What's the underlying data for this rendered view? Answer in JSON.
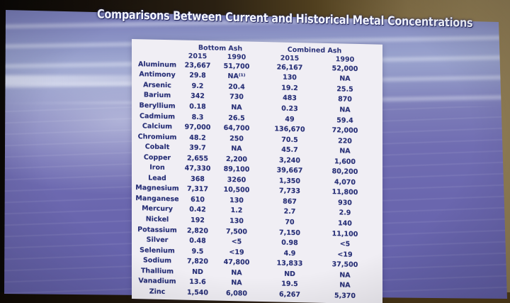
{
  "slide": {
    "title": "Comparisons Between Current and Historical Metal Concentrations",
    "table": {
      "group_headers": [
        "Bottom Ash",
        "Combined Ash"
      ],
      "year_headers": [
        "2015",
        "1990",
        "2015",
        "1990"
      ],
      "rows": [
        {
          "metal": "Aluminum",
          "values": [
            "23,667",
            "51,700",
            "26,167",
            "52,000"
          ]
        },
        {
          "metal": "Antimony",
          "values": [
            "29.8",
            "NA⁽¹⁾",
            "130",
            "NA"
          ]
        },
        {
          "metal": "Arsenic",
          "values": [
            "9.2",
            "20.4",
            "19.2",
            "25.5"
          ]
        },
        {
          "metal": "Barium",
          "values": [
            "342",
            "730",
            "483",
            "870"
          ]
        },
        {
          "metal": "Beryllium",
          "values": [
            "0.18",
            "NA",
            "0.23",
            "NA"
          ]
        },
        {
          "metal": "Cadmium",
          "values": [
            "8.3",
            "26.5",
            "49",
            "59.4"
          ]
        },
        {
          "metal": "Calcium",
          "values": [
            "97,000",
            "64,700",
            "136,670",
            "72,000"
          ]
        },
        {
          "metal": "Chromium",
          "values": [
            "48.2",
            "250",
            "70.5",
            "220"
          ]
        },
        {
          "metal": "Cobalt",
          "values": [
            "39.7",
            "NA",
            "45.7",
            "NA"
          ]
        },
        {
          "metal": "Copper",
          "values": [
            "2,655",
            "2,200",
            "3,240",
            "1,600"
          ]
        },
        {
          "metal": "Iron",
          "values": [
            "47,330",
            "89,100",
            "39,667",
            "80,200"
          ]
        },
        {
          "metal": "Lead",
          "values": [
            "368",
            "3260",
            "1,350",
            "4,070"
          ]
        },
        {
          "metal": "Magnesium",
          "values": [
            "7,317",
            "10,500",
            "7,733",
            "11,800"
          ]
        },
        {
          "metal": "Manganese",
          "values": [
            "610",
            "130",
            "867",
            "930"
          ]
        },
        {
          "metal": "Mercury",
          "values": [
            "0.42",
            "1.2",
            "2.7",
            "2.9"
          ]
        },
        {
          "metal": "Nickel",
          "values": [
            "192",
            "130",
            "70",
            "140"
          ]
        },
        {
          "metal": "Potassium",
          "values": [
            "2,820",
            "7,500",
            "7,150",
            "11,100"
          ]
        },
        {
          "metal": "Silver",
          "values": [
            "0.48",
            "<5",
            "0.98",
            "<5"
          ]
        },
        {
          "metal": "Selenium",
          "values": [
            "9.5",
            "<19",
            "4.9",
            "<19"
          ]
        },
        {
          "metal": "Sodium",
          "values": [
            "7,820",
            "47,800",
            "13,833",
            "37,500"
          ]
        },
        {
          "metal": "Thallium",
          "values": [
            "ND",
            "NA",
            "ND",
            "NA"
          ]
        },
        {
          "metal": "Vanadium",
          "values": [
            "13.6",
            "NA",
            "19.5",
            "NA"
          ]
        },
        {
          "metal": "Zinc",
          "values": [
            "1,540",
            "6,080",
            "6,267",
            "5,370"
          ]
        }
      ]
    }
  },
  "colors": {
    "title_text": "#f4f6ff",
    "title_shadow": "#23265e",
    "table_text": "#283077",
    "panel_bg": "#f0eef4",
    "slide_purple": "#6a66ae",
    "slide_sky": "#98a1cc",
    "wall_tan": "#8d7a52",
    "wall_dark": "#16100a"
  }
}
